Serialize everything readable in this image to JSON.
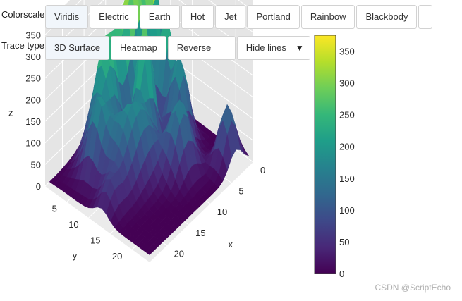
{
  "controls": {
    "colorscale_label": "Colorscale",
    "colorscale_buttons": [
      "Viridis",
      "Electric",
      "Earth",
      "Hot",
      "Jet",
      "Portland",
      "Rainbow",
      "Blackbody"
    ],
    "trace_type_label": "Trace type",
    "trace_type_buttons": [
      "3D Surface",
      "Heatmap"
    ],
    "reverse_label": "Reverse",
    "lines_dropdown": {
      "selected": "Hide lines",
      "arrow": "▼"
    }
  },
  "colors": {
    "viridis": [
      "#440154",
      "#482878",
      "#3e4989",
      "#31688e",
      "#26828e",
      "#1f9e89",
      "#35b779",
      "#6ece58",
      "#b5de2b",
      "#fde725"
    ],
    "active_button_bg": "#f1f6fb",
    "grid": "#ffffff",
    "pane": "#e5e5e5"
  },
  "chart_data": {
    "type": "surface",
    "colorscale": "Viridis",
    "x_axis": {
      "label": "x",
      "ticks": [
        0,
        5,
        10,
        15,
        20
      ]
    },
    "y_axis": {
      "label": "y",
      "ticks": [
        5,
        10,
        15,
        20
      ]
    },
    "z_axis": {
      "label": "z",
      "ticks": [
        0,
        50,
        100,
        150,
        200,
        250,
        300,
        350
      ]
    },
    "z_range": [
      0,
      375
    ],
    "x_range": [
      0,
      24
    ],
    "y_range": [
      0,
      24
    ],
    "colorbar": {
      "ticks": [
        0,
        50,
        100,
        150,
        200,
        250,
        300,
        350
      ],
      "range": [
        0,
        375
      ]
    },
    "peaks": [
      {
        "x": 3,
        "y": 4,
        "z": 370,
        "sx": 1.2,
        "sy": 1.0
      },
      {
        "x": 7,
        "y": 4,
        "z": 270,
        "sx": 2.0,
        "sy": 1.6
      },
      {
        "x": 12,
        "y": 3,
        "z": 230,
        "sx": 3.5,
        "sy": 1.5
      },
      {
        "x": 10,
        "y": 9,
        "z": 300,
        "sx": 1.4,
        "sy": 1.4
      },
      {
        "x": 4,
        "y": 8,
        "z": 260,
        "sx": 1.4,
        "sy": 1.4
      },
      {
        "x": 5,
        "y": 12,
        "z": 200,
        "sx": 1.5,
        "sy": 1.5
      },
      {
        "x": 9,
        "y": 16,
        "z": 170,
        "sx": 2.0,
        "sy": 1.8
      },
      {
        "x": 16,
        "y": 10,
        "z": 150,
        "sx": 2.5,
        "sy": 2.5
      },
      {
        "x": 18,
        "y": 6,
        "z": 150,
        "sx": 1.5,
        "sy": 1.5
      },
      {
        "x": 14,
        "y": 5,
        "z": 120,
        "sx": 1.5,
        "sy": 1.5
      },
      {
        "x": 3,
        "y": 21,
        "z": 140,
        "sx": 1.5,
        "sy": 1.4
      },
      {
        "x": 13,
        "y": 12,
        "z": 100,
        "sx": 2.0,
        "sy": 2.0
      },
      {
        "x": 21,
        "y": 12,
        "z": 60,
        "sx": 1.5,
        "sy": 1.5
      }
    ]
  },
  "watermark": "CSDN @ScriptEcho"
}
